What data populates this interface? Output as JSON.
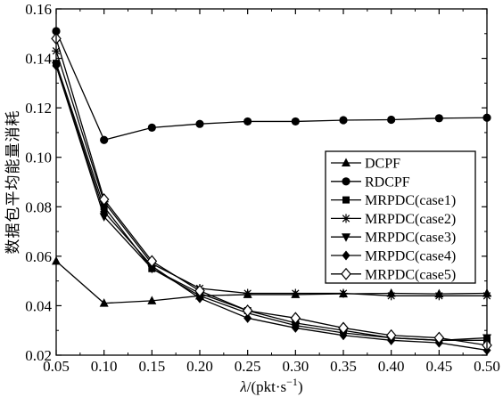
{
  "chart_data": {
    "type": "line",
    "title": "",
    "xlabel_italic": "λ",
    "xlabel_rest": "/(pkt·s",
    "xlabel_sup": "−1",
    "xlabel_end": ")",
    "ylabel": "数据包平均能量消耗",
    "x": [
      0.05,
      0.1,
      0.15,
      0.2,
      0.25,
      0.3,
      0.35,
      0.4,
      0.45,
      0.5
    ],
    "xlim": [
      0.05,
      0.5
    ],
    "ylim": [
      0.02,
      0.16
    ],
    "xticks": [
      "0.05",
      "0.10",
      "0.15",
      "0.20",
      "0.25",
      "0.30",
      "0.35",
      "0.40",
      "0.45",
      "0.50"
    ],
    "yticks": [
      "0.02",
      "0.04",
      "0.06",
      "0.08",
      "0.10",
      "0.12",
      "0.14",
      "0.16"
    ],
    "grid": false,
    "legend_position": "center-right",
    "series": [
      {
        "name": "DCPF",
        "marker": "triangle-up",
        "values": [
          0.058,
          0.041,
          0.042,
          0.044,
          0.0445,
          0.0445,
          0.0448,
          0.045,
          0.0448,
          0.045
        ]
      },
      {
        "name": "RDCPF",
        "marker": "circle",
        "values": [
          0.151,
          0.107,
          0.112,
          0.1135,
          0.1145,
          0.1145,
          0.115,
          0.1152,
          0.1158,
          0.116
        ]
      },
      {
        "name": "MRPDC(case1)",
        "marker": "square",
        "values": [
          0.138,
          0.08,
          0.055,
          0.045,
          0.038,
          0.033,
          0.03,
          0.027,
          0.026,
          0.026
        ]
      },
      {
        "name": "MRPDC(case2)",
        "marker": "asterisk",
        "values": [
          0.143,
          0.082,
          0.057,
          0.047,
          0.045,
          0.045,
          0.045,
          0.044,
          0.044,
          0.044
        ]
      },
      {
        "name": "MRPDC(case3)",
        "marker": "triangle-down",
        "values": [
          0.137,
          0.076,
          0.055,
          0.044,
          0.037,
          0.032,
          0.029,
          0.027,
          0.026,
          0.027
        ]
      },
      {
        "name": "MRPDC(case4)",
        "marker": "diamond",
        "values": [
          0.137,
          0.078,
          0.056,
          0.043,
          0.035,
          0.031,
          0.028,
          0.026,
          0.025,
          0.022
        ]
      },
      {
        "name": "MRPDC(case5)",
        "marker": "diamond-open",
        "values": [
          0.148,
          0.083,
          0.058,
          0.046,
          0.038,
          0.035,
          0.031,
          0.028,
          0.027,
          0.024
        ]
      }
    ]
  }
}
